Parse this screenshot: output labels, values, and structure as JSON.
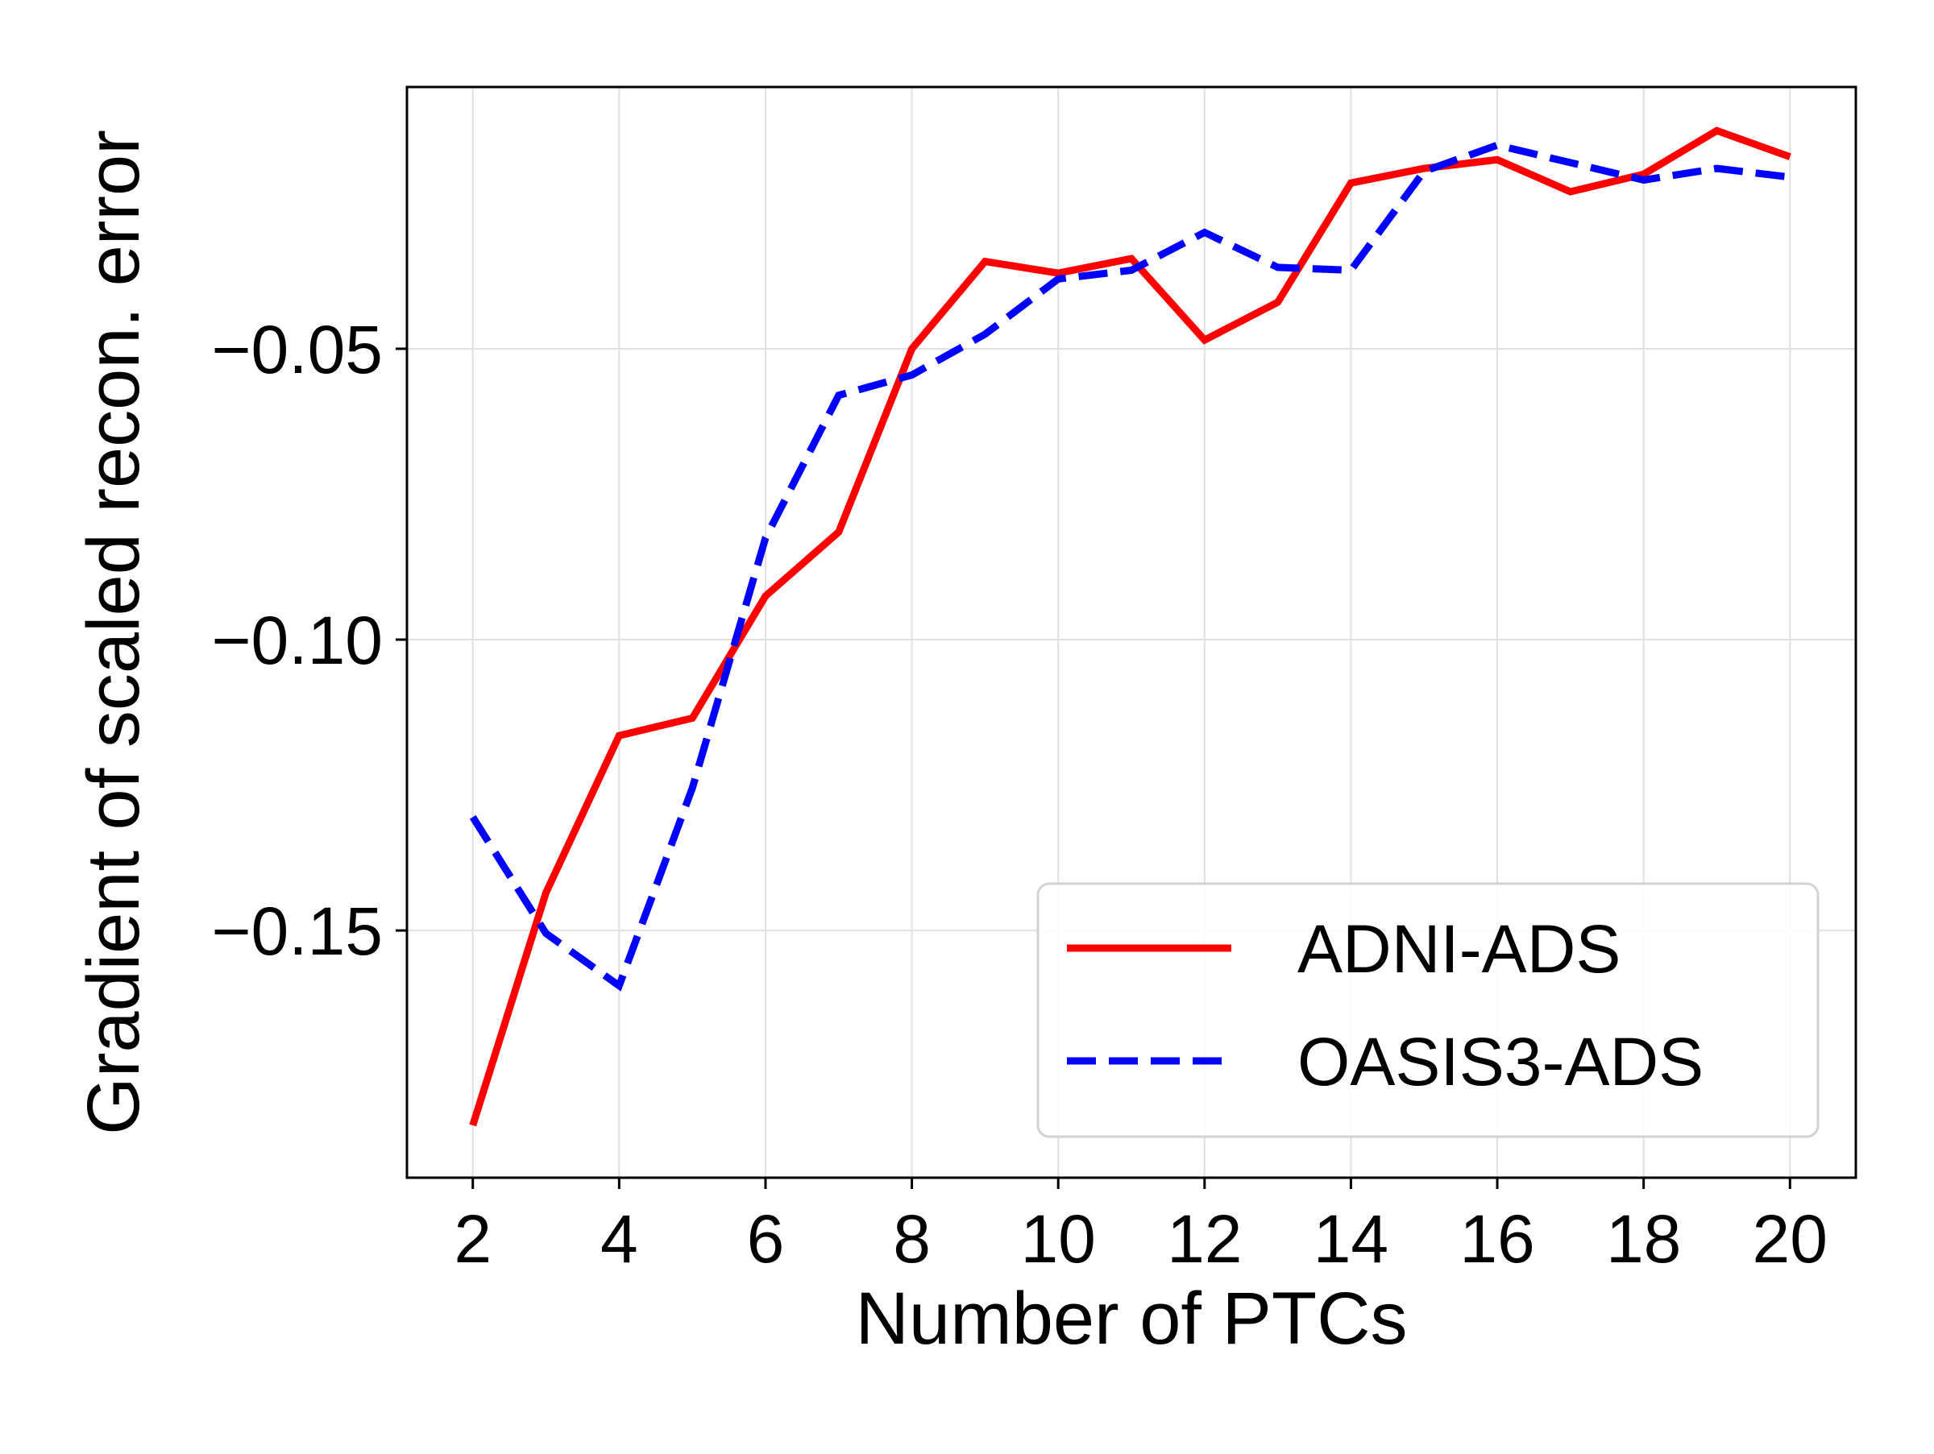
{
  "chart_data": {
    "type": "line",
    "title": "",
    "xlabel": "Number of PTCs",
    "ylabel": "Gradient of scaled recon. error",
    "xlim": [
      1.1,
      20.9
    ],
    "ylim": [
      -0.1925,
      -0.005
    ],
    "xticks": [
      2,
      4,
      6,
      8,
      10,
      12,
      14,
      16,
      18,
      20
    ],
    "xtick_labels": [
      "2",
      "4",
      "6",
      "8",
      "10",
      "12",
      "14",
      "16",
      "18",
      "20"
    ],
    "yticks": [
      -0.05,
      -0.1,
      -0.15
    ],
    "ytick_labels": [
      "−0.05",
      "−0.10",
      "−0.15"
    ],
    "grid": true,
    "legend_position": "lower-right",
    "x": [
      2,
      3,
      4,
      5,
      6,
      7,
      8,
      9,
      10,
      11,
      12,
      13,
      14,
      15,
      16,
      17,
      18,
      19,
      20
    ],
    "series": [
      {
        "name": "ADNI-ADS",
        "color": "#ff0000",
        "style": "solid",
        "values": [
          -0.1835,
          -0.1435,
          -0.1165,
          -0.1135,
          -0.0925,
          -0.0815,
          -0.05,
          -0.035,
          -0.037,
          -0.0345,
          -0.0485,
          -0.042,
          -0.0215,
          -0.019,
          -0.0175,
          -0.023,
          -0.02,
          -0.0125,
          -0.017
        ]
      },
      {
        "name": "OASIS3-ADS",
        "color": "#0000ff",
        "style": "dashed",
        "values": [
          -0.1305,
          -0.1505,
          -0.1595,
          -0.1255,
          -0.0825,
          -0.058,
          -0.0545,
          -0.0475,
          -0.038,
          -0.0365,
          -0.03,
          -0.036,
          -0.0365,
          -0.0195,
          -0.015,
          -0.018,
          -0.021,
          -0.019,
          -0.0205
        ]
      }
    ]
  }
}
